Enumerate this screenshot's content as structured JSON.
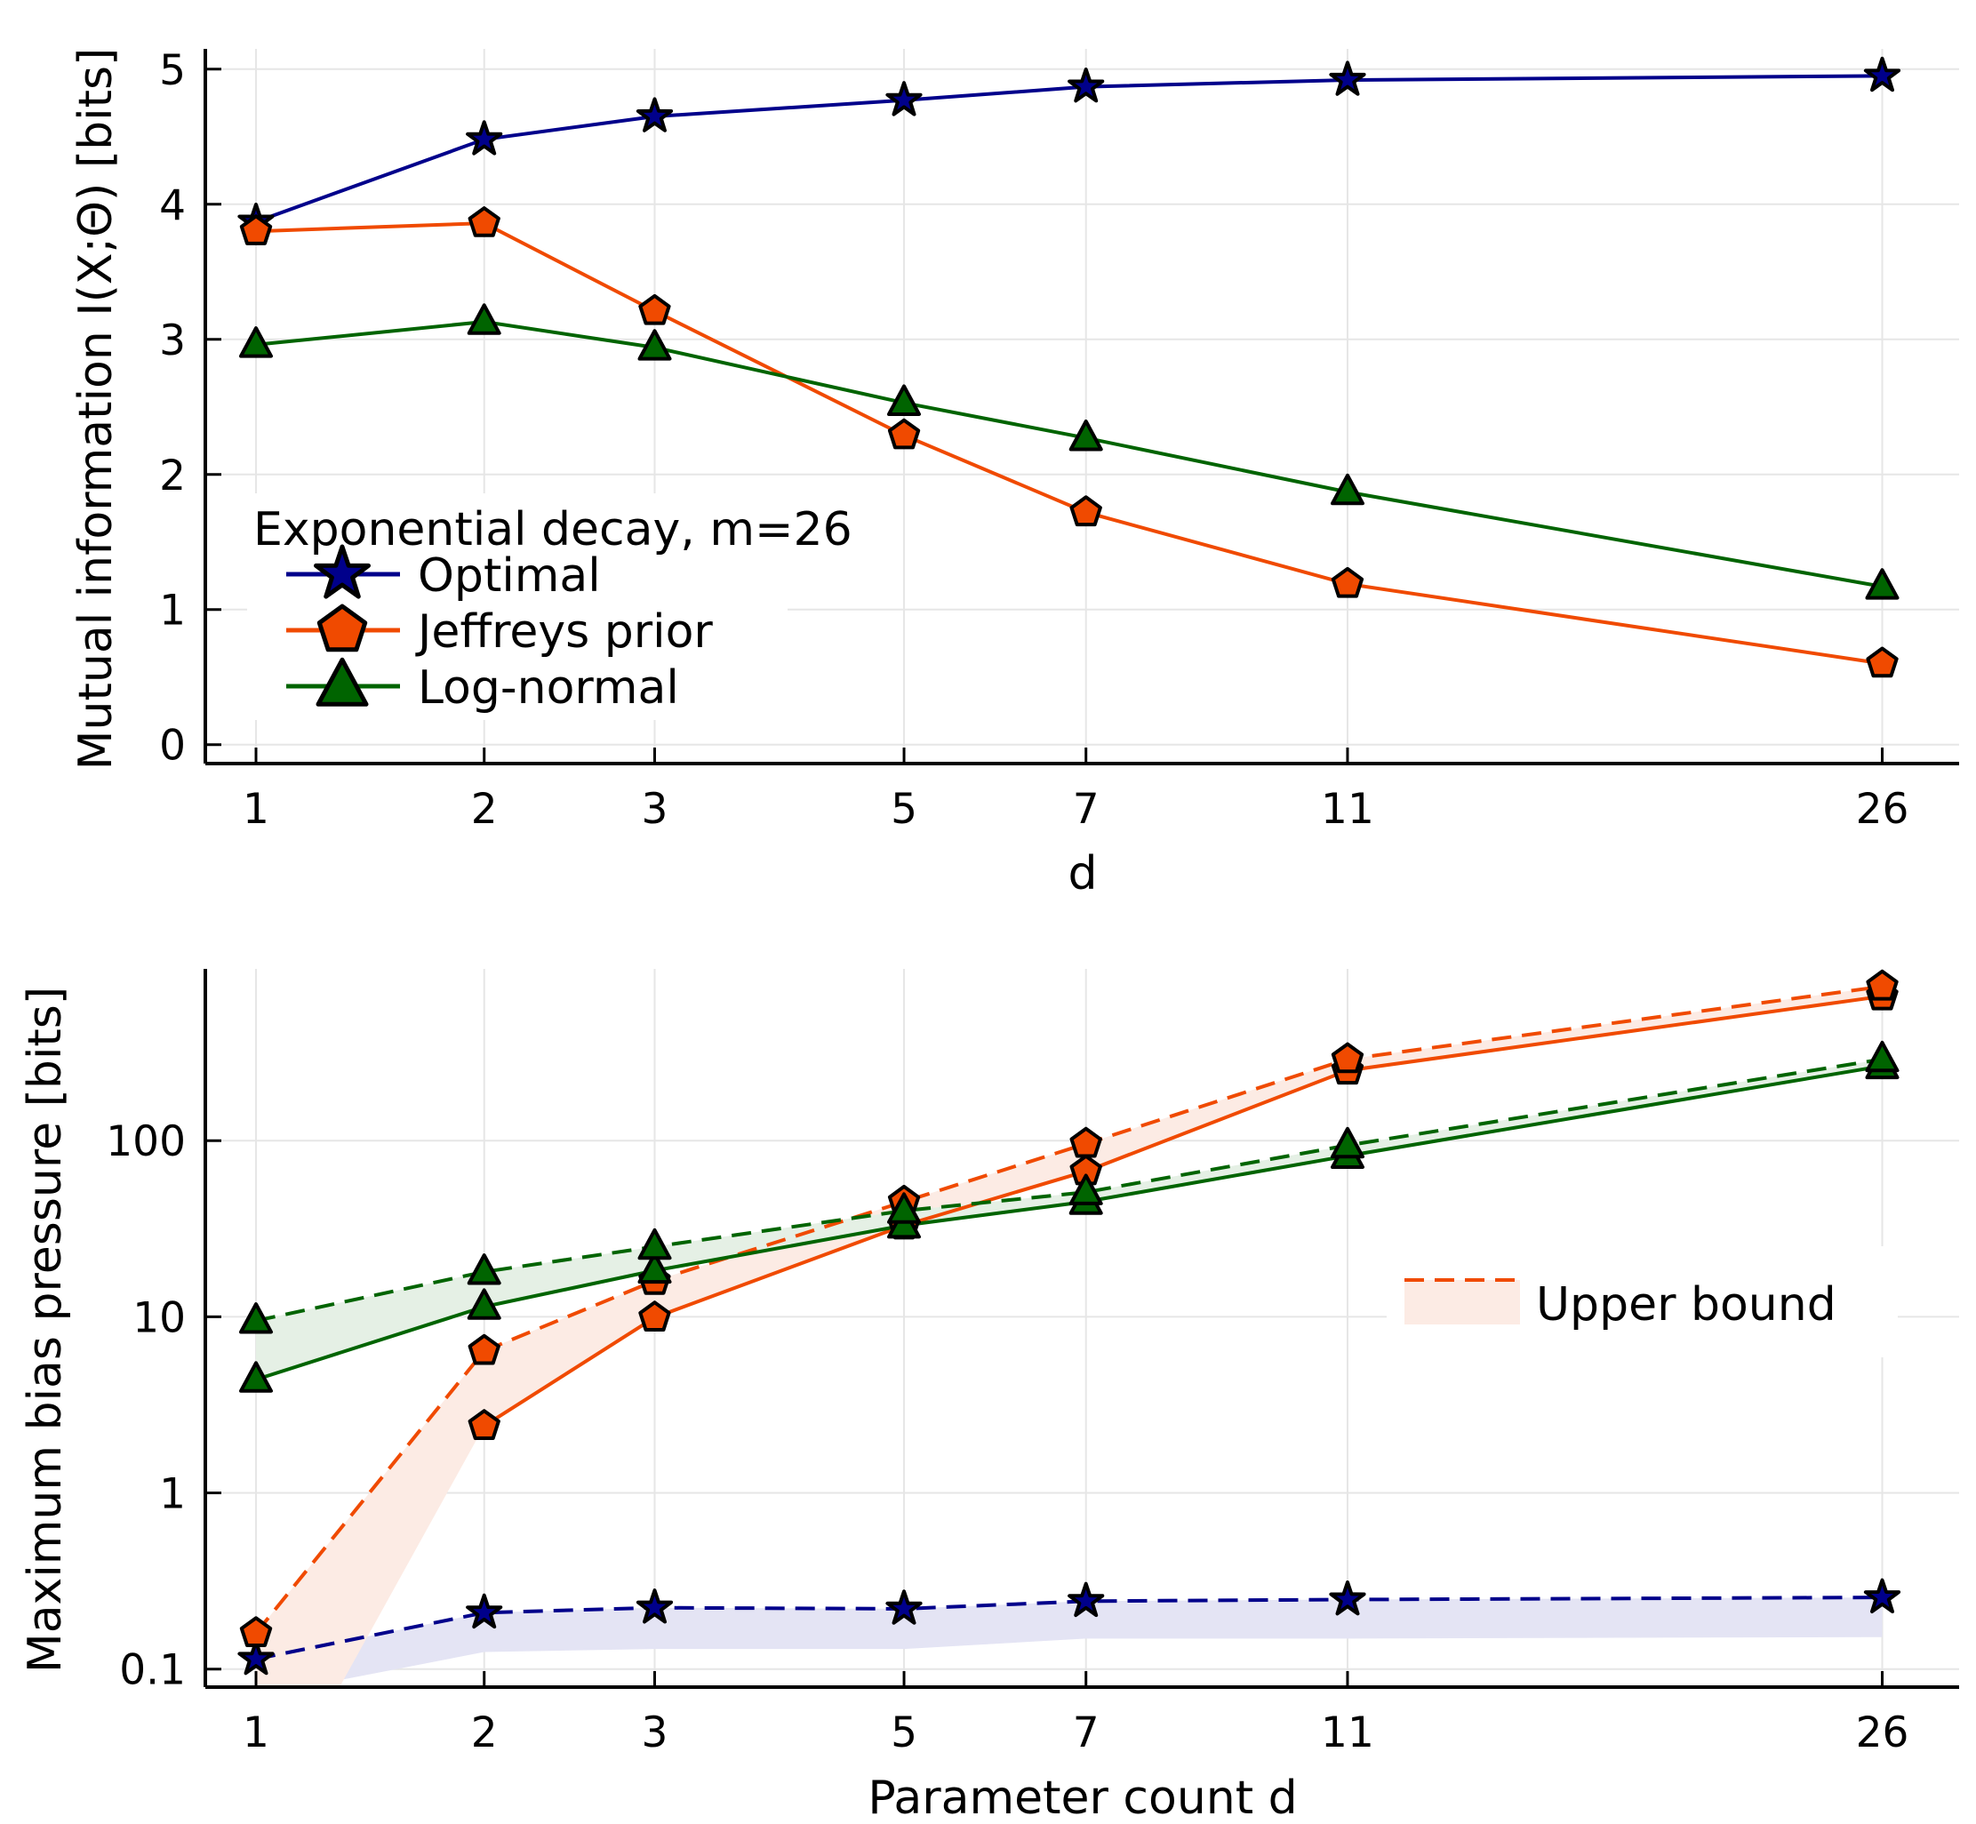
{
  "chart_data": [
    {
      "type": "line",
      "xlabel": "d",
      "ylabel": "Mutual information I(X;Θ) [bits]",
      "x": [
        1,
        2,
        3,
        5,
        7,
        11,
        26
      ],
      "xticks": [
        1,
        2,
        3,
        5,
        7,
        11,
        26
      ],
      "xtick_labels": [
        "1",
        "2",
        "3",
        "5",
        "7",
        "11",
        "26"
      ],
      "xlim": [
        0.82,
        29.3
      ],
      "yscale": "linear",
      "ylim": [
        -0.14,
        5.15
      ],
      "yticks": [
        0,
        1,
        2,
        3,
        4,
        5
      ],
      "ytick_labels": [
        "0",
        "1",
        "2",
        "3",
        "4",
        "5"
      ],
      "grid": true,
      "legend": {
        "title": "Exponential decay, m=26",
        "position": "bottom-left",
        "entries": [
          "Optimal",
          "Jeffreys prior",
          "Log-normal"
        ]
      },
      "series": [
        {
          "name": "Optimal",
          "color": "#00008b",
          "marker": "star",
          "values": [
            3.87,
            4.48,
            4.65,
            4.77,
            4.87,
            4.92,
            4.95
          ]
        },
        {
          "name": "Jeffreys prior",
          "color": "#f04a00",
          "marker": "pentagon",
          "values": [
            3.8,
            3.86,
            3.21,
            2.29,
            1.72,
            1.19,
            0.6
          ]
        },
        {
          "name": "Log-normal",
          "color": "#006400",
          "marker": "triangle",
          "values": [
            2.96,
            3.13,
            2.94,
            2.53,
            2.27,
            1.87,
            1.17
          ]
        }
      ]
    },
    {
      "type": "line",
      "xlabel": "Parameter count d",
      "ylabel": "Maximum bias pressure [bits]",
      "x": [
        1,
        2,
        3,
        5,
        7,
        11,
        26
      ],
      "xticks": [
        1,
        2,
        3,
        5,
        7,
        11,
        26
      ],
      "xtick_labels": [
        "1",
        "2",
        "3",
        "5",
        "7",
        "11",
        "26"
      ],
      "xlim": [
        0.82,
        29.3
      ],
      "yscale": "log",
      "ylim": [
        0.079,
        944
      ],
      "yticks": [
        0.1,
        1,
        10,
        100
      ],
      "ytick_labels": [
        "0.1",
        "1",
        "10",
        "100"
      ],
      "grid": true,
      "legend": {
        "position": "right",
        "entries": [
          "Upper bound"
        ],
        "entry_style": "dashed line with shaded band"
      },
      "series": [
        {
          "name": "Optimal",
          "color": "#00008b",
          "fill": "#e4e4f4",
          "marker": "star",
          "values": null,
          "upper": [
            0.114,
            0.209,
            0.223,
            0.22,
            0.243,
            0.248,
            0.255
          ],
          "band_lower": [
            0.07,
            0.125,
            0.13,
            0.13,
            0.149,
            0.149,
            0.152
          ]
        },
        {
          "name": "Jeffreys prior",
          "color": "#f04a00",
          "fill": "#fcebe4",
          "marker": "pentagon",
          "values": [
            null,
            2.4,
            9.9,
            33,
            67,
            250,
            660
          ],
          "upper": [
            0.16,
            6.4,
            16,
            45,
            96,
            290,
            750
          ],
          "band_lower": [
            0.011,
            2.4,
            9.9,
            33,
            67,
            250,
            660
          ]
        },
        {
          "name": "Log-normal",
          "color": "#006400",
          "fill": "#e5f0e5",
          "marker": "triangle",
          "values": [
            4.4,
            11.4,
            18.3,
            33,
            45,
            82,
            265
          ],
          "upper": [
            9.5,
            18,
            25,
            40,
            51,
            94,
            290
          ],
          "band_lower": [
            4.4,
            11.4,
            18.3,
            33,
            45,
            82,
            265
          ]
        }
      ]
    }
  ]
}
